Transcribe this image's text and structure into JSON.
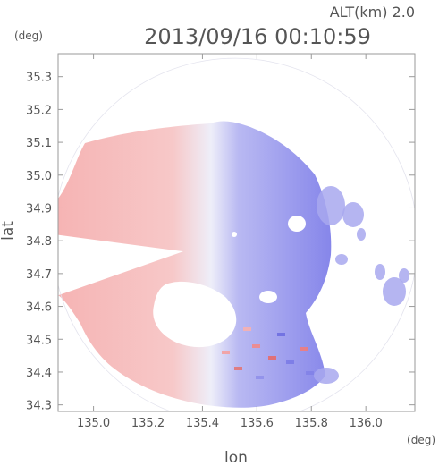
{
  "header": {
    "altitude_label": "ALT(km) 2.0",
    "timestamp": "2013/09/16 00:10:59"
  },
  "chart_data": {
    "type": "heatmap",
    "xlabel": "lon",
    "ylabel": "lat",
    "x_unit": "(deg)",
    "y_unit": "(deg)",
    "xlim": [
      134.87,
      136.18
    ],
    "ylim": [
      34.28,
      35.37
    ],
    "x_ticks": [
      135.0,
      135.2,
      135.4,
      135.6,
      135.8,
      136.0
    ],
    "x_tick_labels": [
      "135.0",
      "135.2",
      "135.4",
      "135.6",
      "135.8",
      "136.0"
    ],
    "y_ticks": [
      34.3,
      34.4,
      34.5,
      34.6,
      34.7,
      34.8,
      34.9,
      35.0,
      35.1,
      35.2,
      35.3
    ],
    "y_tick_labels": [
      "34.3",
      "34.4",
      "34.5",
      "34.6",
      "34.7",
      "34.8",
      "34.9",
      "35.0",
      "35.1",
      "35.2",
      "35.3"
    ],
    "radar_center": [
      135.52,
      34.8
    ],
    "radar_range_deg": 0.67,
    "colors": {
      "receding": "#f4a8a8",
      "approaching": "#8f8fee",
      "neutral": "#f4f4fb",
      "axis": "#9a9a9a",
      "text": "#555555"
    }
  }
}
